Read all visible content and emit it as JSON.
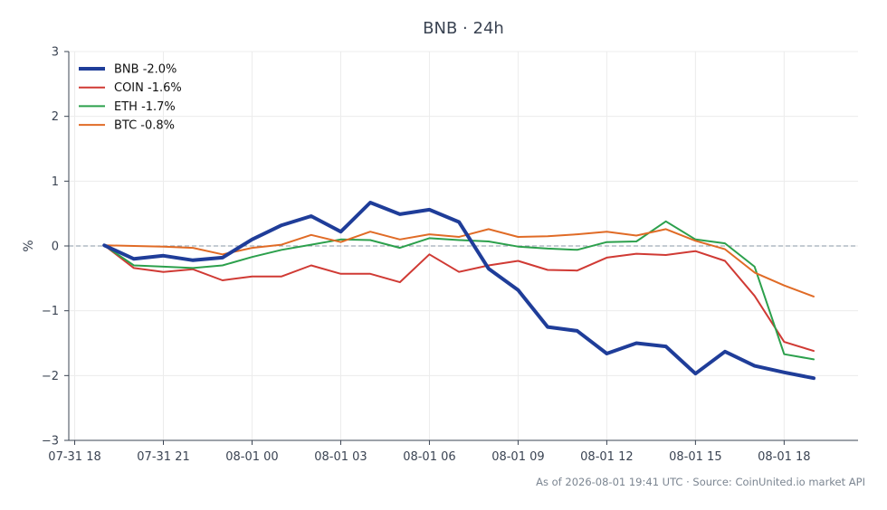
{
  "chart_data": {
    "type": "line",
    "title": "BNB · 24h",
    "xlabel": "",
    "ylabel": "%",
    "ylim": [
      -3,
      3
    ],
    "yticks": [
      3,
      2,
      1,
      0,
      -1,
      -2,
      -3
    ],
    "ytick_labels": [
      "3",
      "2",
      "1",
      "0",
      "−1",
      "−2",
      "−3"
    ],
    "xlim_hours": [
      -0.2,
      26.5
    ],
    "xticks": [
      0,
      3,
      6,
      9,
      12,
      15,
      18,
      21,
      24
    ],
    "xtick_labels": [
      "07-31 18",
      "07-31 21",
      "08-01 00",
      "08-01 03",
      "08-01 06",
      "08-01 09",
      "08-01 12",
      "08-01 15",
      "08-01 18"
    ],
    "x": [
      1,
      2,
      3,
      4,
      5,
      6,
      7,
      8,
      9,
      10,
      11,
      12,
      13,
      14,
      15,
      16,
      17,
      18,
      19,
      20,
      21,
      22,
      23,
      24,
      25
    ],
    "reference_line": 0,
    "legend_position": "top-left",
    "grid": true,
    "series": [
      {
        "name": "BNB -2.0%",
        "color": "#1f3d99",
        "width": 4,
        "values": [
          0.01,
          -0.2,
          -0.15,
          -0.22,
          -0.18,
          0.1,
          0.32,
          0.46,
          0.22,
          0.67,
          0.49,
          0.56,
          0.37,
          -0.35,
          -0.68,
          -1.25,
          -1.31,
          -1.66,
          -1.5,
          -1.55,
          -1.97,
          -1.63,
          -1.85,
          -1.95,
          -2.04
        ]
      },
      {
        "name": "COIN -1.6%",
        "color": "#d03a34",
        "width": 2,
        "values": [
          0.01,
          -0.34,
          -0.4,
          -0.36,
          -0.53,
          -0.47,
          -0.47,
          -0.3,
          -0.43,
          -0.43,
          -0.56,
          -0.13,
          -0.4,
          -0.3,
          -0.23,
          -0.37,
          -0.38,
          -0.18,
          -0.12,
          -0.14,
          -0.08,
          -0.23,
          -0.77,
          -1.48,
          -1.62
        ]
      },
      {
        "name": "ETH -1.7%",
        "color": "#2ca04c",
        "width": 2,
        "values": [
          0.01,
          -0.3,
          -0.32,
          -0.34,
          -0.3,
          -0.17,
          -0.06,
          0.02,
          0.1,
          0.09,
          -0.03,
          0.12,
          0.09,
          0.07,
          -0.01,
          -0.04,
          -0.06,
          0.06,
          0.07,
          0.38,
          0.1,
          0.04,
          -0.32,
          -1.67,
          -1.75
        ]
      },
      {
        "name": "BTC -0.8%",
        "color": "#e06b26",
        "width": 2,
        "values": [
          0.01,
          0.0,
          -0.01,
          -0.03,
          -0.13,
          -0.03,
          0.02,
          0.17,
          0.06,
          0.22,
          0.1,
          0.18,
          0.14,
          0.26,
          0.14,
          0.15,
          0.18,
          0.22,
          0.16,
          0.26,
          0.08,
          -0.05,
          -0.41,
          -0.61,
          -0.78
        ]
      }
    ],
    "footer": "As of 2026-08-01 19:41 UTC · Source: CoinUnited.io market API"
  }
}
